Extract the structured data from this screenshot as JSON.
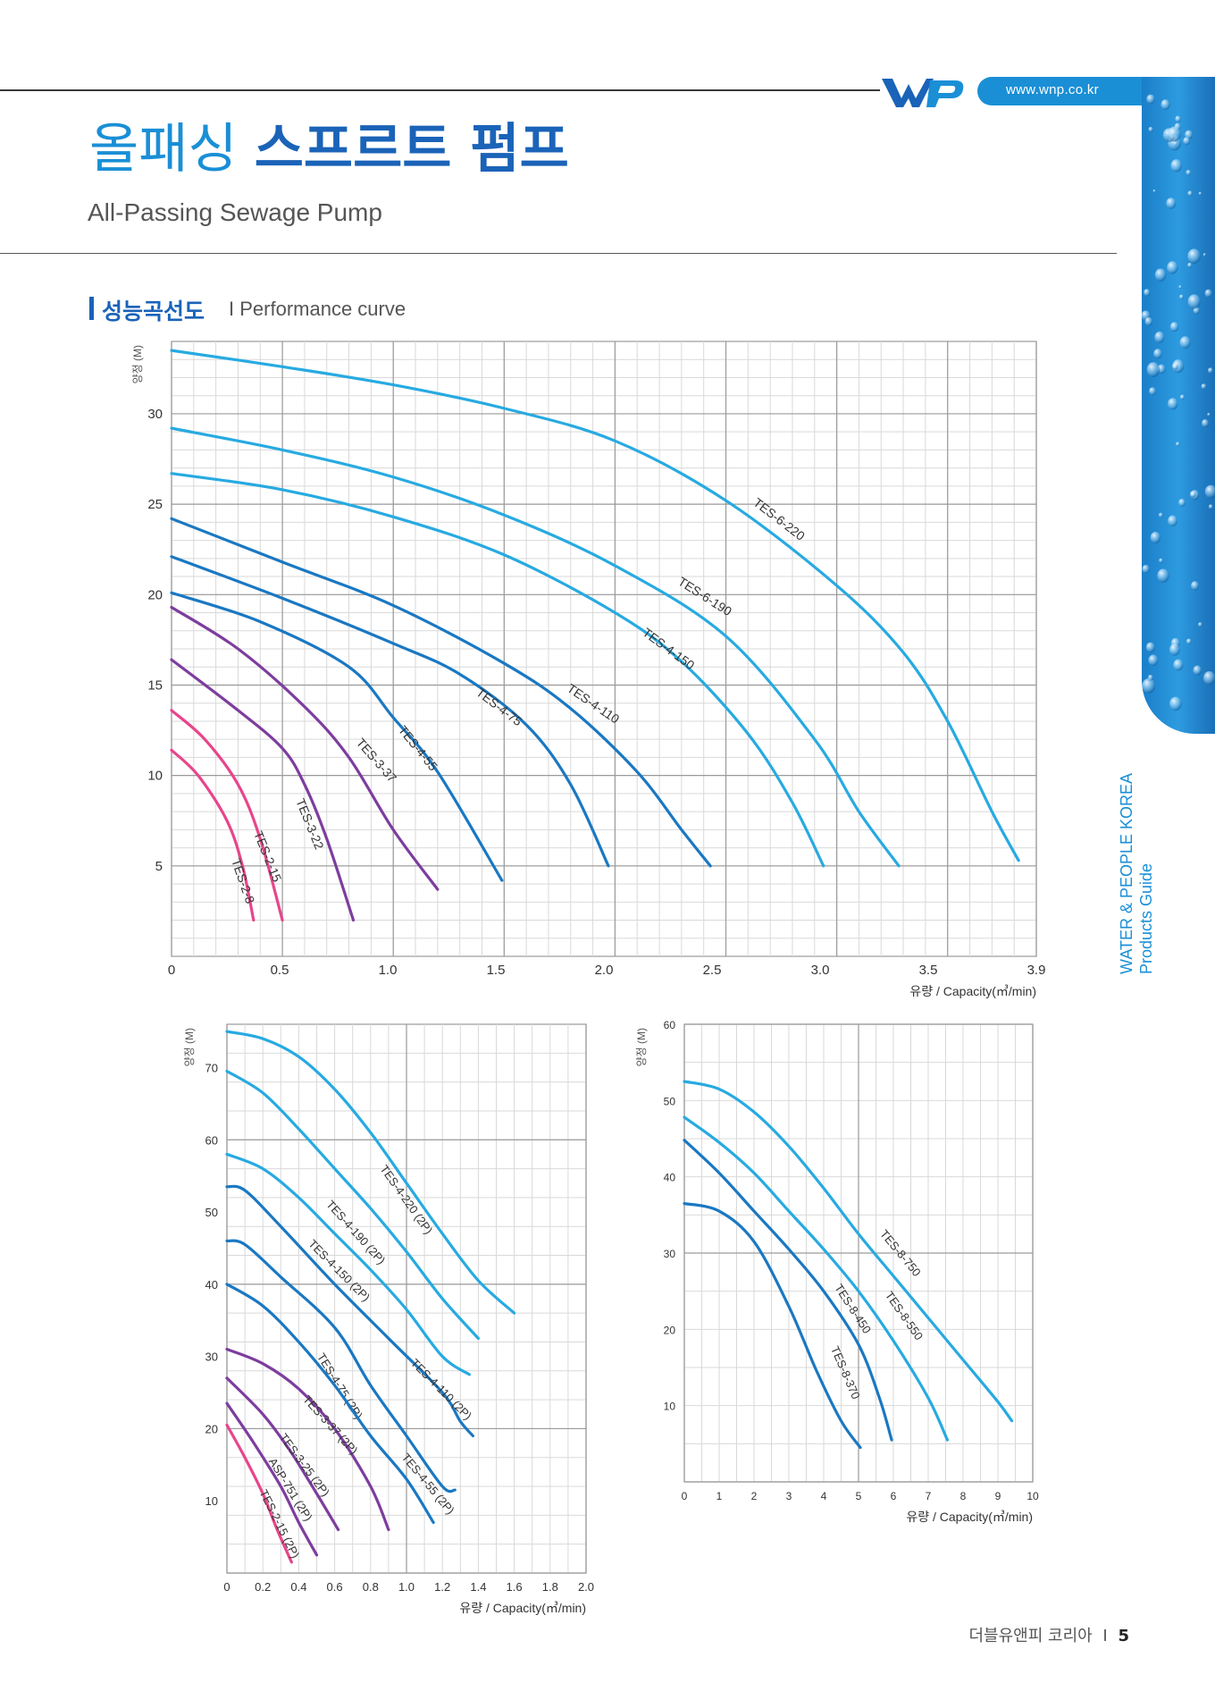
{
  "header": {
    "url": "www.wnp.co.kr",
    "logo_text": "WP",
    "title_ko_light": "올패싱",
    "title_ko_bold": "스프르트 펌프",
    "title_en": "All-Passing Sewage Pump",
    "side_line1": "WATER & PEOPLE KOREA",
    "side_line2": "Products Guide"
  },
  "section": {
    "title_ko": "성능곡선도",
    "divider": "I",
    "title_en": "Performance curve"
  },
  "footer": {
    "company": "더블유앤피 코리아",
    "divider": "I",
    "page": "5"
  },
  "colors": {
    "magenta": "#e8458b",
    "purple": "#7d3d9e",
    "mid_blue": "#1a78c2",
    "light_blue": "#27aae1"
  },
  "chart_data": [
    {
      "type": "line",
      "ylabel": "양정 (M)",
      "xlabel": "유량 / Capacity(㎥/min)",
      "xlim": [
        0,
        3.9
      ],
      "ylim": [
        0,
        34
      ],
      "x_ticks": [
        "0",
        "0.5",
        "1.0",
        "1.5",
        "2.0",
        "2.5",
        "3.0",
        "3.5",
        "3.9"
      ],
      "y_ticks": [
        "5",
        "10",
        "15",
        "20",
        "25",
        "30"
      ],
      "series": [
        {
          "name": "TES-6-220",
          "color": "light_blue",
          "points": [
            [
              0,
              33.5
            ],
            [
              0.5,
              32.6
            ],
            [
              1.0,
              31.6
            ],
            [
              1.5,
              30.3
            ],
            [
              2.0,
              28.5
            ],
            [
              2.5,
              25.2
            ],
            [
              3.0,
              20.5
            ],
            [
              3.3,
              16.8
            ],
            [
              3.5,
              13.0
            ],
            [
              3.7,
              8.0
            ],
            [
              3.82,
              5.3
            ]
          ],
          "label_at": [
            2.62,
            25.0
          ]
        },
        {
          "name": "TES-6-190",
          "color": "light_blue",
          "points": [
            [
              0,
              29.2
            ],
            [
              0.5,
              28.0
            ],
            [
              1.0,
              26.5
            ],
            [
              1.5,
              24.4
            ],
            [
              2.0,
              21.6
            ],
            [
              2.5,
              17.7
            ],
            [
              2.9,
              12.0
            ],
            [
              3.1,
              8.0
            ],
            [
              3.28,
              5.0
            ]
          ],
          "label_at": [
            2.28,
            20.6
          ]
        },
        {
          "name": "TES-4-150",
          "color": "light_blue",
          "points": [
            [
              0,
              26.7
            ],
            [
              0.5,
              25.8
            ],
            [
              1.0,
              24.3
            ],
            [
              1.5,
              22.2
            ],
            [
              2.0,
              19.0
            ],
            [
              2.3,
              16.3
            ],
            [
              2.6,
              12.3
            ],
            [
              2.8,
              8.5
            ],
            [
              2.94,
              5.0
            ]
          ],
          "label_at": [
            2.12,
            17.8
          ]
        },
        {
          "name": "TES-4-110",
          "color": "mid_blue",
          "points": [
            [
              0,
              24.2
            ],
            [
              0.5,
              21.8
            ],
            [
              1.0,
              19.4
            ],
            [
              1.5,
              16.2
            ],
            [
              1.8,
              13.7
            ],
            [
              2.1,
              10.2
            ],
            [
              2.3,
              7.0
            ],
            [
              2.43,
              5.0
            ]
          ],
          "label_at": [
            1.78,
            14.7
          ]
        },
        {
          "name": "TES-4-75",
          "color": "mid_blue",
          "points": [
            [
              0,
              22.1
            ],
            [
              0.5,
              19.8
            ],
            [
              1.0,
              17.3
            ],
            [
              1.3,
              15.6
            ],
            [
              1.6,
              12.8
            ],
            [
              1.8,
              9.5
            ],
            [
              1.97,
              5.0
            ]
          ],
          "label_at": [
            1.37,
            14.5
          ]
        },
        {
          "name": "TES-4-55",
          "color": "mid_blue",
          "points": [
            [
              0,
              20.1
            ],
            [
              0.4,
              18.5
            ],
            [
              0.8,
              16.0
            ],
            [
              1.0,
              13.2
            ],
            [
              1.2,
              10.2
            ],
            [
              1.49,
              4.2
            ]
          ],
          "label_at": [
            1.02,
            12.5
          ]
        },
        {
          "name": "TES-3-37",
          "color": "purple",
          "points": [
            [
              0,
              19.3
            ],
            [
              0.3,
              17.0
            ],
            [
              0.6,
              13.8
            ],
            [
              0.8,
              11.0
            ],
            [
              1.0,
              7.0
            ],
            [
              1.2,
              3.7
            ]
          ],
          "label_at": [
            0.83,
            11.8
          ]
        },
        {
          "name": "TES-3-22",
          "color": "purple",
          "points": [
            [
              0,
              16.4
            ],
            [
              0.3,
              13.6
            ],
            [
              0.5,
              11.5
            ],
            [
              0.6,
              9.5
            ],
            [
              0.7,
              6.5
            ],
            [
              0.82,
              2.0
            ]
          ],
          "label_at": [
            0.56,
            8.6
          ]
        },
        {
          "name": "TES-2-15",
          "color": "magenta",
          "points": [
            [
              0,
              13.6
            ],
            [
              0.15,
              12.0
            ],
            [
              0.3,
              9.5
            ],
            [
              0.4,
              6.5
            ],
            [
              0.5,
              2.0
            ]
          ],
          "label_at": [
            0.37,
            6.8
          ]
        },
        {
          "name": "TES-2-8",
          "color": "magenta",
          "points": [
            [
              0,
              11.4
            ],
            [
              0.12,
              10.0
            ],
            [
              0.25,
              7.5
            ],
            [
              0.32,
              5.0
            ],
            [
              0.37,
              2.0
            ]
          ],
          "label_at": [
            0.27,
            5.3
          ]
        }
      ]
    },
    {
      "type": "line",
      "ylabel": "양정 (M)",
      "xlabel": "유량 / Capacity(㎥/min)",
      "xlim": [
        0,
        2.0
      ],
      "ylim": [
        0,
        76
      ],
      "x_ticks": [
        "0",
        "0.2",
        "0.4",
        "0.6",
        "0.8",
        "1.0",
        "1.2",
        "1.4",
        "1.6",
        "1.8",
        "2.0"
      ],
      "y_ticks": [
        "10",
        "20",
        "30",
        "40",
        "50",
        "60",
        "70"
      ],
      "series": [
        {
          "name": "TES-4-220 (2P)",
          "color": "light_blue",
          "points": [
            [
              0,
              75.0
            ],
            [
              0.2,
              74.0
            ],
            [
              0.4,
              71.5
            ],
            [
              0.6,
              67.0
            ],
            [
              0.8,
              61.0
            ],
            [
              1.0,
              54.0
            ],
            [
              1.2,
              47.0
            ],
            [
              1.4,
              40.5
            ],
            [
              1.6,
              36.0
            ]
          ],
          "label_at": [
            0.85,
            56.0
          ]
        },
        {
          "name": "TES-4-190 (2P)",
          "color": "light_blue",
          "points": [
            [
              0,
              69.5
            ],
            [
              0.2,
              66.5
            ],
            [
              0.4,
              61.5
            ],
            [
              0.6,
              56.0
            ],
            [
              0.8,
              50.5
            ],
            [
              1.0,
              44.5
            ],
            [
              1.2,
              38.0
            ],
            [
              1.4,
              32.5
            ]
          ],
          "label_at": [
            0.55,
            51.0
          ]
        },
        {
          "name": "TES-4-150 (2P)",
          "color": "light_blue",
          "points": [
            [
              0,
              58.0
            ],
            [
              0.2,
              56.0
            ],
            [
              0.4,
              52.0
            ],
            [
              0.6,
              47.0
            ],
            [
              0.8,
              42.0
            ],
            [
              1.0,
              36.5
            ],
            [
              1.2,
              30.0
            ],
            [
              1.35,
              27.5
            ]
          ],
          "label_at": [
            0.45,
            45.5
          ]
        },
        {
          "name": "TES-4-110 (2P)",
          "color": "mid_blue",
          "points": [
            [
              0,
              53.5
            ],
            [
              0.1,
              53.0
            ],
            [
              0.3,
              48.0
            ],
            [
              0.6,
              40.0
            ],
            [
              0.9,
              32.5
            ],
            [
              1.2,
              25.0
            ],
            [
              1.3,
              21.0
            ],
            [
              1.37,
              19.0
            ]
          ],
          "label_at": [
            1.02,
            29.0
          ]
        },
        {
          "name": "TES-4-75 (2P)",
          "color": "mid_blue",
          "points": [
            [
              0,
              46.0
            ],
            [
              0.1,
              45.5
            ],
            [
              0.3,
              41.0
            ],
            [
              0.6,
              34.0
            ],
            [
              0.8,
              26.0
            ],
            [
              1.0,
              19.0
            ],
            [
              1.2,
              12.0
            ],
            [
              1.27,
              11.5
            ]
          ],
          "label_at": [
            0.5,
            30.0
          ]
        },
        {
          "name": "TES-4-55 (2P)",
          "color": "mid_blue",
          "points": [
            [
              0,
              40.0
            ],
            [
              0.2,
              37.0
            ],
            [
              0.4,
              32.0
            ],
            [
              0.6,
              26.0
            ],
            [
              0.8,
              19.0
            ],
            [
              1.0,
              13.0
            ],
            [
              1.15,
              7.0
            ]
          ],
          "label_at": [
            0.97,
            16.0
          ]
        },
        {
          "name": "TES-3-37 (2P)",
          "color": "purple",
          "points": [
            [
              0,
              31.0
            ],
            [
              0.2,
              29.0
            ],
            [
              0.4,
              25.5
            ],
            [
              0.6,
              20.0
            ],
            [
              0.8,
              12.0
            ],
            [
              0.9,
              6.0
            ]
          ],
          "label_at": [
            0.42,
            24.0
          ]
        },
        {
          "name": "TES-3-25 (2P)",
          "color": "purple",
          "points": [
            [
              0,
              27.0
            ],
            [
              0.2,
              22.0
            ],
            [
              0.35,
              17.0
            ],
            [
              0.5,
              11.0
            ],
            [
              0.62,
              6.0
            ]
          ],
          "label_at": [
            0.29,
            18.8
          ]
        },
        {
          "name": "ASP-751 (2P)",
          "color": "purple",
          "points": [
            [
              0,
              23.5
            ],
            [
              0.15,
              18.0
            ],
            [
              0.3,
              12.0
            ],
            [
              0.4,
              7.0
            ],
            [
              0.5,
              2.5
            ]
          ],
          "label_at": [
            0.23,
            15.5
          ]
        },
        {
          "name": "TES-2-15 (2P)",
          "color": "magenta",
          "points": [
            [
              0,
              20.5
            ],
            [
              0.1,
              16.0
            ],
            [
              0.2,
              11.0
            ],
            [
              0.28,
              6.0
            ],
            [
              0.36,
              1.5
            ]
          ],
          "label_at": [
            0.18,
            11.2
          ]
        }
      ]
    },
    {
      "type": "line",
      "ylabel": "양정 (M)",
      "xlabel": "유량 / Capacity(㎥/min)",
      "xlim": [
        0,
        10
      ],
      "ylim": [
        0,
        60
      ],
      "x_ticks": [
        "0",
        "1",
        "2",
        "3",
        "4",
        "5",
        "6",
        "7",
        "8",
        "9",
        "10"
      ],
      "y_ticks": [
        "10",
        "20",
        "30",
        "40",
        "50",
        "60"
      ],
      "series": [
        {
          "name": "TES-8-750",
          "color": "light_blue",
          "points": [
            [
              0,
              52.5
            ],
            [
              1,
              51.5
            ],
            [
              2,
              48.5
            ],
            [
              3,
              44.0
            ],
            [
              4,
              38.5
            ],
            [
              5,
              32.5
            ],
            [
              6,
              27.0
            ],
            [
              7,
              21.5
            ],
            [
              8,
              16.0
            ],
            [
              9,
              10.5
            ],
            [
              9.4,
              8.0
            ]
          ],
          "label_at": [
            5.6,
            32.5
          ]
        },
        {
          "name": "TES-8-550",
          "color": "light_blue",
          "points": [
            [
              0,
              47.8
            ],
            [
              1,
              44.5
            ],
            [
              2,
              40.5
            ],
            [
              3,
              35.5
            ],
            [
              4,
              30.5
            ],
            [
              5,
              25.0
            ],
            [
              6,
              18.5
            ],
            [
              7,
              11.0
            ],
            [
              7.55,
              5.5
            ]
          ],
          "label_at": [
            5.75,
            24.5
          ]
        },
        {
          "name": "TES-8-450",
          "color": "mid_blue",
          "points": [
            [
              0,
              44.8
            ],
            [
              1,
              40.5
            ],
            [
              2,
              35.5
            ],
            [
              3,
              30.5
            ],
            [
              4,
              25.0
            ],
            [
              5,
              18.0
            ],
            [
              5.6,
              11.0
            ],
            [
              5.95,
              5.5
            ]
          ],
          "label_at": [
            4.3,
            25.5
          ]
        },
        {
          "name": "TES-8-370",
          "color": "mid_blue",
          "points": [
            [
              0,
              36.5
            ],
            [
              1,
              35.5
            ],
            [
              2,
              31.5
            ],
            [
              3,
              23.0
            ],
            [
              3.8,
              14.5
            ],
            [
              4.5,
              8.0
            ],
            [
              5.05,
              4.5
            ]
          ],
          "label_at": [
            4.2,
            17.5
          ]
        }
      ]
    }
  ]
}
